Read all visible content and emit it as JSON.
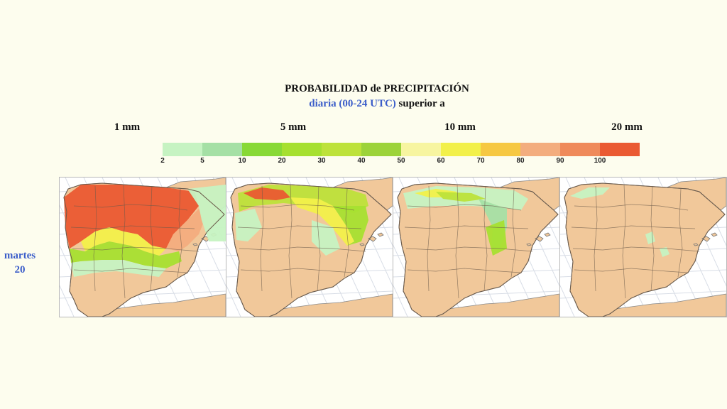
{
  "title": "PROBABILIDAD de PRECIPITACIÓN",
  "subtitle": {
    "part1": "diaria (00-24 UTC)",
    "part2": "superior a"
  },
  "thresholds": [
    "1 mm",
    "5 mm",
    "10 mm",
    "20 mm"
  ],
  "legend": {
    "ticks": [
      "2",
      "5",
      "10",
      "20",
      "30",
      "40",
      "50",
      "60",
      "70",
      "80",
      "90",
      "100"
    ],
    "colors": [
      "#c6f3c2",
      "#a5e0a5",
      "#88d936",
      "#a6e030",
      "#bde23a",
      "#9cd33a",
      "#f7f5a0",
      "#f2f04a",
      "#f6c842",
      "#f3ad7e",
      "#ef8a5a",
      "#ea5a32"
    ]
  },
  "day": {
    "weekday": "martes",
    "date": "20"
  },
  "maps": [
    {
      "threshold": "1 mm",
      "level": "high"
    },
    {
      "threshold": "5 mm",
      "level": "medium"
    },
    {
      "threshold": "10 mm",
      "level": "low"
    },
    {
      "threshold": "20 mm",
      "level": "minimal"
    }
  ]
}
